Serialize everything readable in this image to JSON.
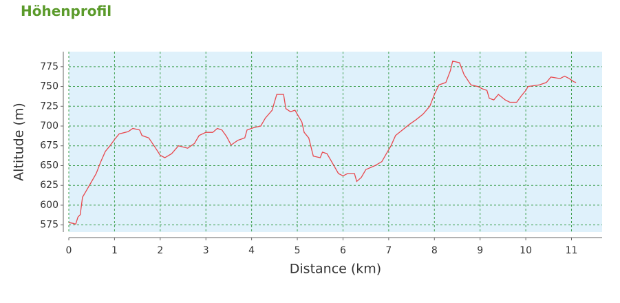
{
  "title": "Höhenprofil",
  "chart_data": {
    "type": "line",
    "xlabel": "Distance (km)",
    "ylabel": "Altitude (m)",
    "xlim": [
      0,
      11.67
    ],
    "ylim": [
      566,
      794
    ],
    "xticks": [
      0,
      1,
      2,
      3,
      4,
      5,
      6,
      7,
      8,
      9,
      10,
      11
    ],
    "yticks": [
      575,
      600,
      625,
      650,
      675,
      700,
      725,
      750,
      775
    ],
    "grid": true,
    "background": "#dff1fb",
    "grid_color": "#3fa04f",
    "series": [
      {
        "color": "#e8474c",
        "x": [
          0,
          0.1,
          0.15,
          0.2,
          0.25,
          0.3,
          0.4,
          0.5,
          0.6,
          0.7,
          0.8,
          0.9,
          1.0,
          1.1,
          1.3,
          1.4,
          1.55,
          1.6,
          1.75,
          1.9,
          2.0,
          2.1,
          2.25,
          2.4,
          2.6,
          2.75,
          2.85,
          3.0,
          3.15,
          3.25,
          3.35,
          3.45,
          3.55,
          3.7,
          3.85,
          3.9,
          4.05,
          4.2,
          4.3,
          4.45,
          4.5,
          4.55,
          4.7,
          4.75,
          4.85,
          4.95,
          5.0,
          5.1,
          5.15,
          5.25,
          5.35,
          5.5,
          5.55,
          5.65,
          5.75,
          5.9,
          6.0,
          6.1,
          6.25,
          6.3,
          6.4,
          6.5,
          6.7,
          6.85,
          6.95,
          7.05,
          7.15,
          7.3,
          7.45,
          7.6,
          7.75,
          7.9,
          8.0,
          8.1,
          8.25,
          8.35,
          8.4,
          8.55,
          8.65,
          8.8,
          8.95,
          9.05,
          9.15,
          9.2,
          9.3,
          9.4,
          9.55,
          9.65,
          9.8,
          9.9,
          10.0,
          10.05,
          10.3,
          10.45,
          10.55,
          10.75,
          10.85,
          10.95,
          11.05,
          11.1
        ],
        "values": [
          578,
          577,
          576,
          585,
          588,
          610,
          620,
          630,
          640,
          655,
          668,
          675,
          683,
          690,
          693,
          697,
          695,
          688,
          685,
          672,
          663,
          660,
          665,
          675,
          672,
          678,
          688,
          692,
          692,
          697,
          695,
          687,
          676,
          682,
          685,
          695,
          698,
          700,
          710,
          720,
          730,
          740,
          740,
          722,
          718,
          720,
          715,
          705,
          692,
          685,
          662,
          660,
          667,
          665,
          655,
          640,
          637,
          640,
          640,
          630,
          635,
          645,
          650,
          655,
          665,
          675,
          688,
          695,
          702,
          708,
          715,
          725,
          740,
          752,
          755,
          770,
          782,
          780,
          765,
          752,
          750,
          747,
          745,
          735,
          733,
          740,
          733,
          730,
          730,
          738,
          745,
          750,
          752,
          755,
          762,
          760,
          763,
          760,
          756,
          755
        ]
      }
    ]
  }
}
